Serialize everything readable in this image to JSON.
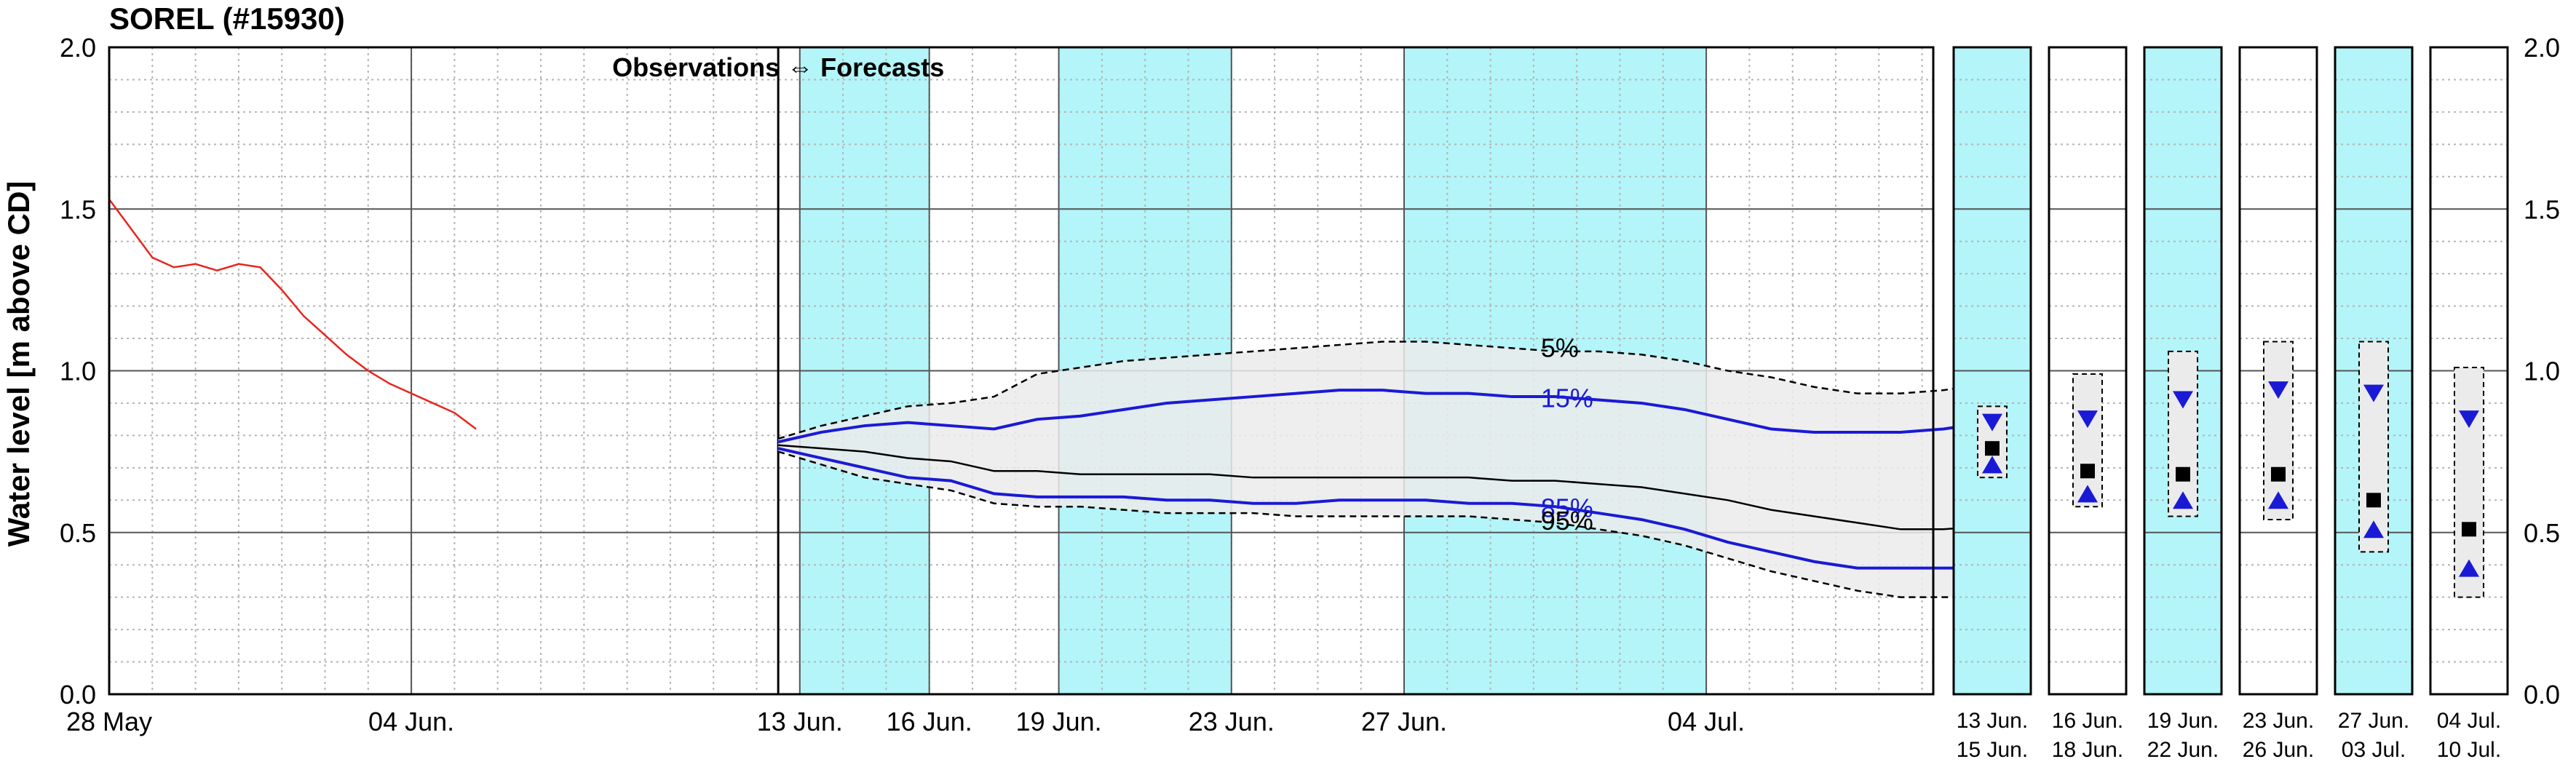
{
  "chart_data": {
    "type": "line",
    "title": "SOREL (#15930)",
    "ylabel": "Water level [m above CD]",
    "ylim": [
      0,
      2.0
    ],
    "yticks": [
      0.0,
      0.5,
      1.0,
      1.5,
      2.0
    ],
    "ytick_labels": [
      "0.0",
      "0.5",
      "1.0",
      "1.5",
      "2.0"
    ],
    "grid": true,
    "annotation": "Observations ⇔ Forecasts",
    "colors": {
      "observed": "#e8261c",
      "median": "#000000",
      "percentile_15_85": "#1a1ad6",
      "envelope_5_95": "#000000",
      "envelope_fill": "#ebebeb",
      "weekend_band": "#b3f5f9"
    },
    "observations": {
      "x_labels": [
        "28 May",
        "04 Jun."
      ],
      "days_start": "28 May",
      "x": [
        0,
        0.5,
        1,
        1.5,
        2,
        2.5,
        3,
        3.5,
        4,
        4.5,
        5,
        5.5,
        6,
        6.5,
        7,
        7.5,
        8,
        8.5
      ],
      "y": [
        1.53,
        1.44,
        1.35,
        1.32,
        1.33,
        1.31,
        1.33,
        1.32,
        1.25,
        1.17,
        1.11,
        1.05,
        1.0,
        0.96,
        0.93,
        0.9,
        0.87,
        0.82
      ]
    },
    "forecast": {
      "x_labels": [
        "13 Jun.",
        "16 Jun.",
        "19 Jun.",
        "23 Jun.",
        "27 Jun.",
        "04 Jul."
      ],
      "x": [
        "12 Jun.",
        "13 Jun.",
        "14 Jun.",
        "15 Jun.",
        "16 Jun.",
        "17 Jun.",
        "18 Jun.",
        "19 Jun.",
        "20 Jun.",
        "21 Jun.",
        "22 Jun.",
        "23 Jun.",
        "24 Jun.",
        "25 Jun.",
        "26 Jun.",
        "27 Jun.",
        "28 Jun.",
        "29 Jun.",
        "30 Jun.",
        "01 Jul.",
        "02 Jul.",
        "03 Jul.",
        "04 Jul.",
        "05 Jul.",
        "06 Jul.",
        "07 Jul.",
        "08 Jul.",
        "09 Jul.",
        "10 Jul."
      ],
      "series": [
        {
          "name": "5%",
          "style": "dashed",
          "values": [
            0.79,
            0.83,
            0.86,
            0.89,
            0.9,
            0.92,
            0.99,
            1.01,
            1.03,
            1.04,
            1.05,
            1.06,
            1.07,
            1.08,
            1.09,
            1.09,
            1.08,
            1.07,
            1.06,
            1.06,
            1.05,
            1.03,
            1.0,
            0.98,
            0.95,
            0.93,
            0.93,
            0.94,
            0.96
          ]
        },
        {
          "name": "15%",
          "style": "solid-blue",
          "values": [
            0.78,
            0.81,
            0.83,
            0.84,
            0.83,
            0.82,
            0.85,
            0.86,
            0.88,
            0.9,
            0.91,
            0.92,
            0.93,
            0.94,
            0.94,
            0.93,
            0.93,
            0.92,
            0.92,
            0.91,
            0.9,
            0.88,
            0.85,
            0.82,
            0.81,
            0.81,
            0.81,
            0.82,
            0.84
          ]
        },
        {
          "name": "median",
          "style": "solid-black",
          "values": [
            0.77,
            0.76,
            0.75,
            0.73,
            0.72,
            0.69,
            0.69,
            0.68,
            0.68,
            0.68,
            0.68,
            0.67,
            0.67,
            0.67,
            0.67,
            0.67,
            0.67,
            0.66,
            0.66,
            0.65,
            0.64,
            0.62,
            0.6,
            0.57,
            0.55,
            0.53,
            0.51,
            0.51,
            0.52
          ]
        },
        {
          "name": "85%",
          "style": "solid-blue",
          "values": [
            0.76,
            0.73,
            0.7,
            0.67,
            0.66,
            0.62,
            0.61,
            0.61,
            0.61,
            0.6,
            0.6,
            0.59,
            0.59,
            0.6,
            0.6,
            0.6,
            0.59,
            0.59,
            0.58,
            0.56,
            0.54,
            0.51,
            0.47,
            0.44,
            0.41,
            0.39,
            0.39,
            0.39,
            0.39
          ]
        },
        {
          "name": "95%",
          "style": "dashed",
          "values": [
            0.75,
            0.71,
            0.67,
            0.65,
            0.63,
            0.59,
            0.58,
            0.58,
            0.57,
            0.56,
            0.56,
            0.56,
            0.55,
            0.55,
            0.55,
            0.55,
            0.55,
            0.54,
            0.53,
            0.51,
            0.49,
            0.46,
            0.42,
            0.38,
            0.35,
            0.32,
            0.3,
            0.3,
            0.3
          ]
        }
      ],
      "weekend_bands": [
        [
          "13 Jun.",
          "16 Jun."
        ],
        [
          "19 Jun.",
          "23 Jun."
        ],
        [
          "27 Jun.",
          "04 Jul."
        ]
      ]
    },
    "period_panels": [
      {
        "date_from": "13 Jun.",
        "date_to": "15 Jun.",
        "shaded": true,
        "range": [
          0.67,
          0.89
        ],
        "p15": 0.84,
        "median": 0.76,
        "p85": 0.71
      },
      {
        "date_from": "16 Jun.",
        "date_to": "18 Jun.",
        "shaded": false,
        "range": [
          0.58,
          0.99
        ],
        "p15": 0.85,
        "median": 0.69,
        "p85": 0.62
      },
      {
        "date_from": "19 Jun.",
        "date_to": "22 Jun.",
        "shaded": true,
        "range": [
          0.55,
          1.06
        ],
        "p15": 0.91,
        "median": 0.68,
        "p85": 0.6
      },
      {
        "date_from": "23 Jun.",
        "date_to": "26 Jun.",
        "shaded": false,
        "range": [
          0.54,
          1.09
        ],
        "p15": 0.94,
        "median": 0.68,
        "p85": 0.6
      },
      {
        "date_from": "27 Jun.",
        "date_to": "03 Jul.",
        "shaded": true,
        "range": [
          0.44,
          1.09
        ],
        "p15": 0.93,
        "median": 0.6,
        "p85": 0.51
      },
      {
        "date_from": "04 Jul.",
        "date_to": "10 Jul.",
        "shaded": false,
        "range": [
          0.3,
          1.01
        ],
        "p15": 0.85,
        "median": 0.51,
        "p85": 0.39
      }
    ]
  }
}
